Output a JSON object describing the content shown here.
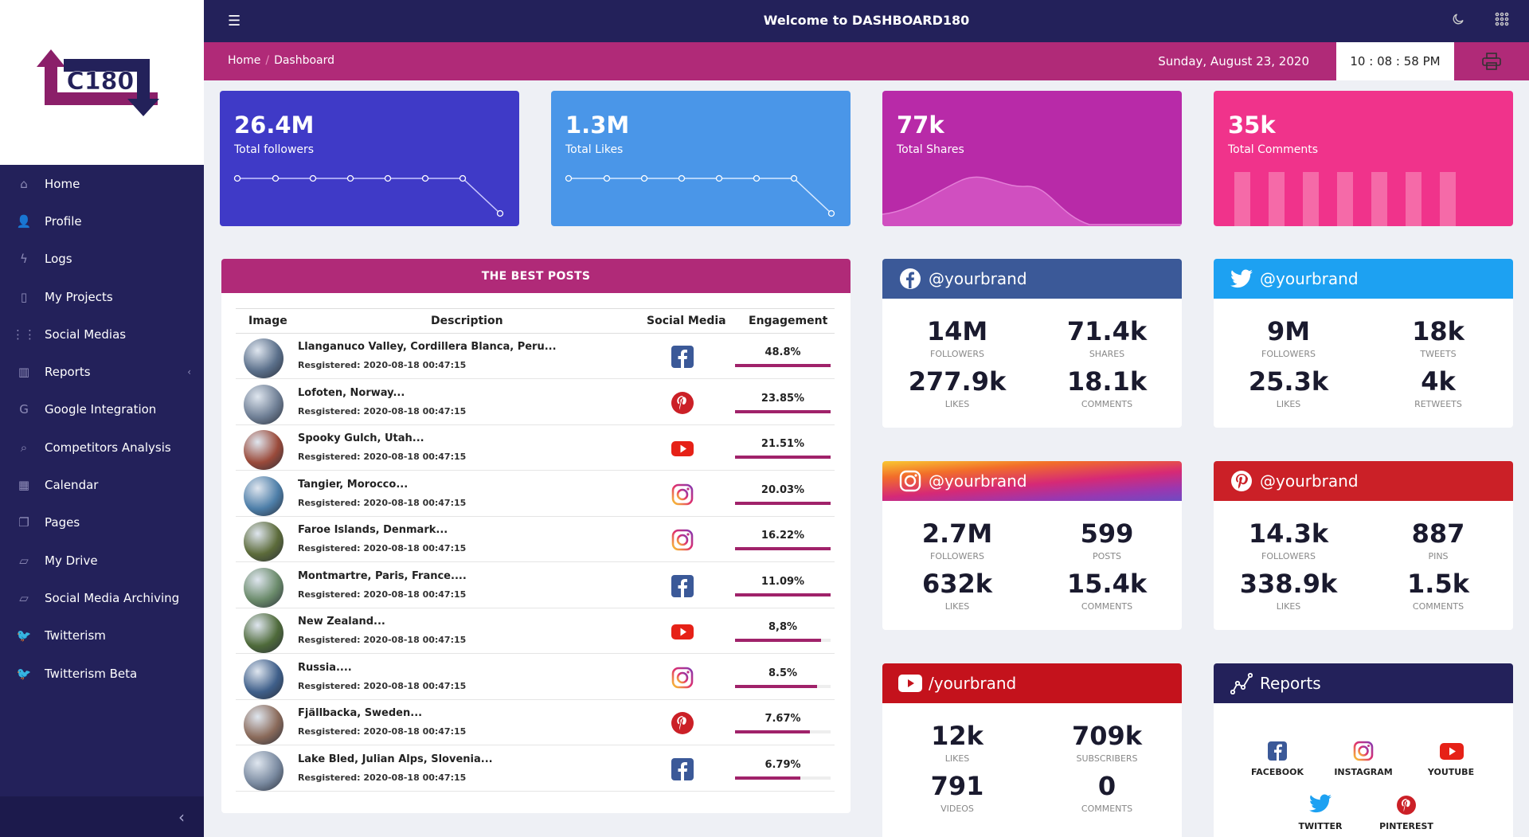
{
  "app": {
    "title": "Welcome to DASHBOARD180",
    "logo_text": "C180"
  },
  "sidebar": {
    "items": [
      {
        "label": "Home",
        "icon": "home-icon",
        "glyph": "⌂"
      },
      {
        "label": "Profile",
        "icon": "user-icon",
        "glyph": "👤"
      },
      {
        "label": "Logs",
        "icon": "bolt-icon",
        "glyph": "ϟ"
      },
      {
        "label": "My Projects",
        "icon": "bookmark-icon",
        "glyph": "▯"
      },
      {
        "label": "Social Medias",
        "icon": "grid-icon",
        "glyph": "⋮⋮"
      },
      {
        "label": "Reports",
        "icon": "bar-chart-icon",
        "glyph": "▥",
        "chevron": "‹"
      },
      {
        "label": "Google Integration",
        "icon": "google-icon",
        "glyph": "G"
      },
      {
        "label": "Competitors Analysis",
        "icon": "search-icon",
        "glyph": "⌕"
      },
      {
        "label": "Calendar",
        "icon": "calendar-icon",
        "glyph": "▦"
      },
      {
        "label": "Pages",
        "icon": "copy-icon",
        "glyph": "❐"
      },
      {
        "label": "My Drive",
        "icon": "folder-icon",
        "glyph": "▱"
      },
      {
        "label": "Social Media Archiving",
        "icon": "folder-open-icon",
        "glyph": "▱"
      },
      {
        "label": "Twitterism",
        "icon": "twitter-icon",
        "glyph": "🐦"
      },
      {
        "label": "Twitterism Beta",
        "icon": "twitter-icon",
        "glyph": "🐦"
      }
    ],
    "collapse_glyph": "‹"
  },
  "breadcrumb": {
    "home": "Home",
    "sep": "/",
    "current": "Dashboard"
  },
  "date": "Sunday, August 23, 2020",
  "clock": "10 : 08 : 58 PM",
  "stats": [
    {
      "value": "26.4M",
      "label": "Total followers",
      "color": "#3f3ac7"
    },
    {
      "value": "1.3M",
      "label": "Total Likes",
      "color": "#4a96e8"
    },
    {
      "value": "77k",
      "label": "Total Shares",
      "color": "#b82aa8"
    },
    {
      "value": "35k",
      "label": "Total Comments",
      "color": "#f0338b"
    }
  ],
  "posts": {
    "title": "THE BEST POSTS",
    "headers": [
      "Image",
      "Description",
      "Social Media",
      "Engagement"
    ],
    "rows": [
      {
        "title": "Llanganuco Valley, Cordillera Blanca, Peru...",
        "registered": "Resgistered: 2020-08-18 00:47:15",
        "social": "facebook",
        "engagement": "48.8%",
        "pct": 100,
        "thumb": "#5a6f8a"
      },
      {
        "title": "Lofoten, Norway...",
        "registered": "Resgistered: 2020-08-18 00:47:15",
        "social": "pinterest",
        "engagement": "23.85%",
        "pct": 100,
        "thumb": "#6f7f95"
      },
      {
        "title": "Spooky Gulch, Utah...",
        "registered": "Resgistered: 2020-08-18 00:47:15",
        "social": "youtube",
        "engagement": "21.51%",
        "pct": 100,
        "thumb": "#9a4a3a"
      },
      {
        "title": "Tangier, Morocco...",
        "registered": "Resgistered: 2020-08-18 00:47:15",
        "social": "instagram",
        "engagement": "20.03%",
        "pct": 100,
        "thumb": "#4d7ea8"
      },
      {
        "title": "Faroe Islands, Denmark...",
        "registered": "Resgistered: 2020-08-18 00:47:15",
        "social": "instagram",
        "engagement": "16.22%",
        "pct": 100,
        "thumb": "#5c6b3a"
      },
      {
        "title": "Montmartre, Paris, France....",
        "registered": "Resgistered: 2020-08-18 00:47:15",
        "social": "facebook",
        "engagement": "11.09%",
        "pct": 100,
        "thumb": "#6a8a6a"
      },
      {
        "title": "New Zealand...",
        "registered": "Resgistered: 2020-08-18 00:47:15",
        "social": "youtube",
        "engagement": "8,8%",
        "pct": 90,
        "thumb": "#4e6a3a"
      },
      {
        "title": "Russia....",
        "registered": "Resgistered: 2020-08-18 00:47:15",
        "social": "instagram",
        "engagement": "8.5%",
        "pct": 86,
        "thumb": "#3f5f8a"
      },
      {
        "title": "Fjällbacka, Sweden...",
        "registered": "Resgistered: 2020-08-18 00:47:15",
        "social": "pinterest",
        "engagement": "7.67%",
        "pct": 78,
        "thumb": "#8a6a5a"
      },
      {
        "title": "Lake Bled, Julian Alps, Slovenia...",
        "registered": "Resgistered: 2020-08-18 00:47:15",
        "social": "facebook",
        "engagement": "6.79%",
        "pct": 68,
        "thumb": "#7a8aa0"
      }
    ]
  },
  "cards": {
    "facebook": {
      "handle": "@yourbrand",
      "color": "#3b5998",
      "stats": [
        {
          "n": "14M",
          "s": "FOLLOWERS"
        },
        {
          "n": "71.4k",
          "s": "SHARES"
        },
        {
          "n": "277.9k",
          "s": "LIKES"
        },
        {
          "n": "18.1k",
          "s": "COMMENTS"
        }
      ]
    },
    "twitter": {
      "handle": "@yourbrand",
      "color": "#1da1f2",
      "stats": [
        {
          "n": "9M",
          "s": "FOLLOWERS"
        },
        {
          "n": "18k",
          "s": "TWEETS"
        },
        {
          "n": "25.3k",
          "s": "LIKES"
        },
        {
          "n": "4k",
          "s": "RETWEETS"
        }
      ]
    },
    "instagram": {
      "handle": "@yourbrand",
      "stats": [
        {
          "n": "2.7M",
          "s": "FOLLOWERS"
        },
        {
          "n": "599",
          "s": "POSTS"
        },
        {
          "n": "632k",
          "s": "LIKES"
        },
        {
          "n": "15.4k",
          "s": "COMMENTS"
        }
      ]
    },
    "pinterest": {
      "handle": "@yourbrand",
      "color": "#cb2027",
      "stats": [
        {
          "n": "14.3k",
          "s": "FOLLOWERS"
        },
        {
          "n": "887",
          "s": "PINS"
        },
        {
          "n": "338.9k",
          "s": "LIKES"
        },
        {
          "n": "1.5k",
          "s": "COMMENTS"
        }
      ]
    },
    "youtube": {
      "handle": "/yourbrand",
      "color": "#c4121c",
      "stats": [
        {
          "n": "12k",
          "s": "LIKES"
        },
        {
          "n": "709k",
          "s": "SUBSCRIBERS"
        },
        {
          "n": "791",
          "s": "VIDEOS"
        },
        {
          "n": "0",
          "s": "COMMENTS"
        }
      ]
    },
    "reports": {
      "title": "Reports",
      "color": "#23215a",
      "links": [
        "FACEBOOK",
        "INSTAGRAM",
        "YOUTUBE",
        "TWITTER",
        "PINTEREST"
      ]
    }
  }
}
